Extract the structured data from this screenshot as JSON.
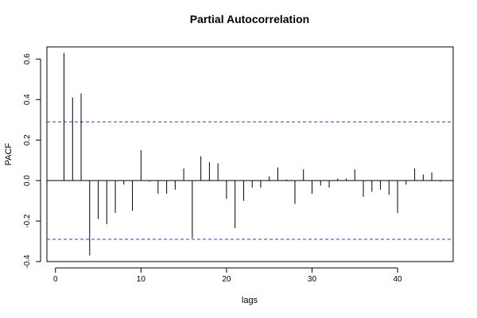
{
  "chart_data": {
    "type": "bar",
    "title": "Partial Autocorrelation",
    "xlabel": "lags",
    "ylabel": "PACF",
    "xlim": [
      -1,
      46.5
    ],
    "ylim": [
      -0.4,
      0.66
    ],
    "x_ticks": [
      0,
      10,
      20,
      30,
      40
    ],
    "x_tick_labels": [
      "0",
      "10",
      "20",
      "30",
      "40"
    ],
    "y_ticks": [
      -0.4,
      -0.2,
      0.0,
      0.2,
      0.4,
      0.6
    ],
    "y_tick_labels": [
      "-0.4",
      "-0.2",
      "0.0",
      "0.2",
      "0.4",
      "0.6"
    ],
    "confidence_band": [
      -0.29,
      0.29
    ],
    "grid": false,
    "lags": [
      1,
      2,
      3,
      4,
      5,
      6,
      7,
      8,
      9,
      10,
      11,
      12,
      13,
      14,
      15,
      16,
      17,
      18,
      19,
      20,
      21,
      22,
      23,
      24,
      25,
      26,
      27,
      28,
      29,
      30,
      31,
      32,
      33,
      34,
      35,
      36,
      37,
      38,
      39,
      40,
      41,
      42,
      43,
      44,
      45
    ],
    "values": [
      0.63,
      0.41,
      0.43,
      -0.37,
      -0.19,
      -0.215,
      -0.16,
      -0.02,
      -0.15,
      0.15,
      -0.005,
      -0.065,
      -0.065,
      -0.045,
      0.06,
      -0.285,
      0.12,
      0.09,
      0.085,
      -0.09,
      -0.235,
      -0.1,
      -0.035,
      -0.035,
      0.02,
      0.065,
      0.005,
      -0.115,
      0.055,
      -0.065,
      -0.025,
      -0.035,
      0.01,
      0.01,
      0.055,
      -0.08,
      -0.055,
      -0.045,
      -0.07,
      -0.16,
      -0.02,
      0.06,
      0.03,
      0.04,
      -0.005
    ]
  }
}
